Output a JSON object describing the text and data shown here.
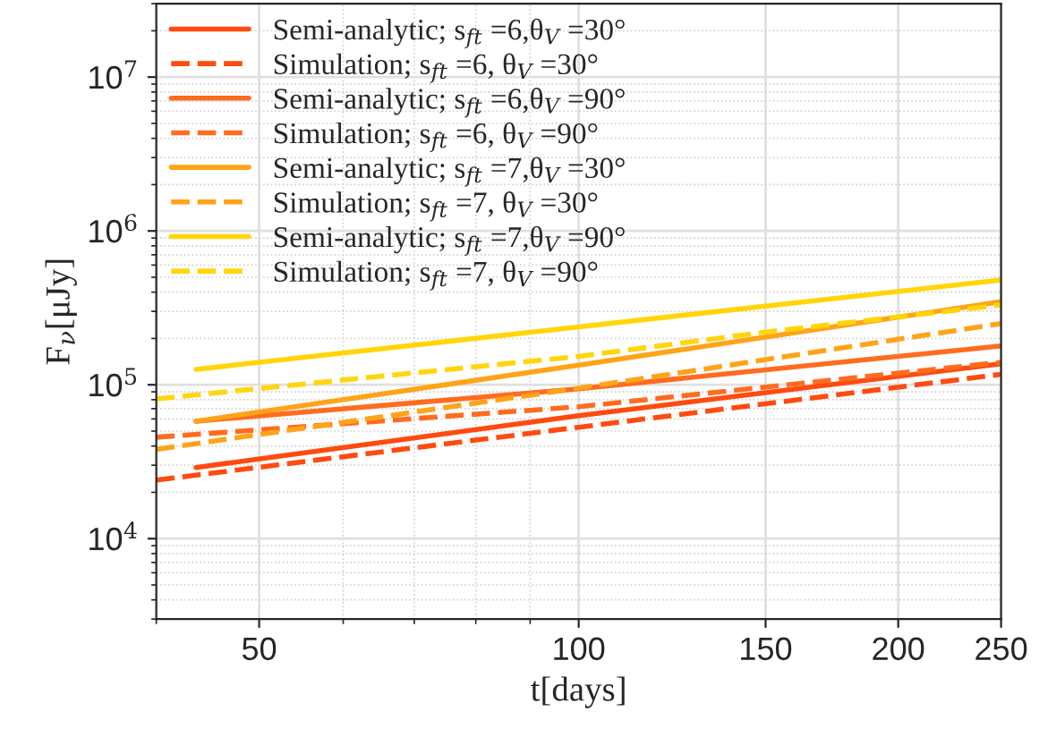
{
  "chart_data": {
    "type": "line",
    "xlabel": "t[days]",
    "ylabel": "F$_{ν}$[μJy]",
    "log": "xy",
    "grid": true,
    "legend": "top left",
    "marker": "none",
    "xlim": [
      40,
      250
    ],
    "xticks": [
      50,
      100,
      150,
      200,
      250
    ],
    "ylim": [
      3000,
      30000000
    ],
    "yticks": [
      {
        "value": 10000,
        "label": "10$^{4}$"
      },
      {
        "value": 100000,
        "label": "10$^{5}$"
      },
      {
        "value": 1000000,
        "label": "10$^{6}$"
      },
      {
        "value": 10000000,
        "label": "10$^{7}$"
      }
    ],
    "series": [
      {
        "name": "Semi-analytic; s$_{ft}$ =6,θ$_{V}$ =30°",
        "color": "#ff4b0f",
        "line_style": "solid",
        "x": [
          43.6,
          100,
          250
        ],
        "values": [
          29000,
          63000,
          137000
        ]
      },
      {
        "name": "Simulation; s$_{ft}$ =6, θ$_{V}$ =30°",
        "color": "#ff4b0f",
        "line_style": "dashed",
        "x": [
          40,
          100,
          250
        ],
        "values": [
          24000,
          53000,
          117000
        ]
      },
      {
        "name": "Semi-analytic; s$_{ft}$ =6,θ$_{V}$ =90°",
        "color": "#ff6c1f",
        "line_style": "solid",
        "x": [
          43.6,
          100,
          250
        ],
        "values": [
          58000,
          94000,
          179000
        ]
      },
      {
        "name": "Simulation; s$_{ft}$ =6, θ$_{V}$ =90°",
        "color": "#ff6c1f",
        "line_style": "dashed",
        "x": [
          40,
          100,
          250
        ],
        "values": [
          45600,
          72000,
          140000
        ]
      },
      {
        "name": "Semi-analytic; s$_{ft}$ =7,θ$_{V}$ =30°",
        "color": "#ffa319",
        "line_style": "solid",
        "x": [
          43.6,
          100,
          250
        ],
        "values": [
          58000,
          134000,
          347000
        ]
      },
      {
        "name": "Simulation; s$_{ft}$ =7, θ$_{V}$ =30°",
        "color": "#ffa319",
        "line_style": "dashed",
        "x": [
          40,
          100,
          250
        ],
        "values": [
          38000,
          95000,
          250000
        ]
      },
      {
        "name": "Semi-analytic; s$_{ft}$ =7,θ$_{V}$ =90°",
        "color": "#ffd60a",
        "line_style": "solid",
        "x": [
          43.6,
          100,
          250
        ],
        "values": [
          126000,
          238000,
          480000
        ]
      },
      {
        "name": "Simulation; s$_{ft}$ =7, θ$_{V}$ =90°",
        "color": "#ffd60a",
        "line_style": "dashed",
        "x": [
          40,
          100,
          150,
          250
        ],
        "values": [
          81000,
          153000,
          220000,
          330000
        ]
      }
    ]
  }
}
